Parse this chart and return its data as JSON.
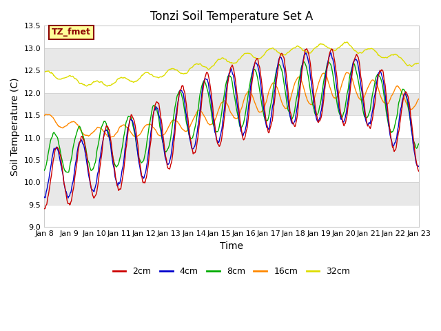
{
  "title": "Tonzi Soil Temperature Set A",
  "xlabel": "Time",
  "ylabel": "Soil Temperature (C)",
  "annotation": "TZ_fmet",
  "ylim": [
    9.0,
    13.5
  ],
  "xlim": [
    0,
    15
  ],
  "x_tick_labels": [
    "Jan 8",
    "Jan 9",
    "Jan 10",
    "Jan 11",
    "Jan 12",
    "Jan 13",
    "Jan 14",
    "Jan 15",
    "Jan 16",
    "Jan 17",
    "Jan 18",
    "Jan 19",
    "Jan 20",
    "Jan 21",
    "Jan 22",
    "Jan 23"
  ],
  "colors": {
    "2cm": "#cc0000",
    "4cm": "#0000cc",
    "8cm": "#00aa00",
    "16cm": "#ff8800",
    "32cm": "#dddd00"
  },
  "legend_labels": [
    "2cm",
    "4cm",
    "8cm",
    "16cm",
    "32cm"
  ],
  "fig_bg_color": "#ffffff",
  "plot_bg_color": "#e8e8e8",
  "band_light": "#f5f5f5",
  "band_dark": "#e0e0e0",
  "annotation_bg": "#ffff99",
  "annotation_border": "#8b0000",
  "title_fontsize": 12,
  "axis_fontsize": 10,
  "tick_fontsize": 8
}
